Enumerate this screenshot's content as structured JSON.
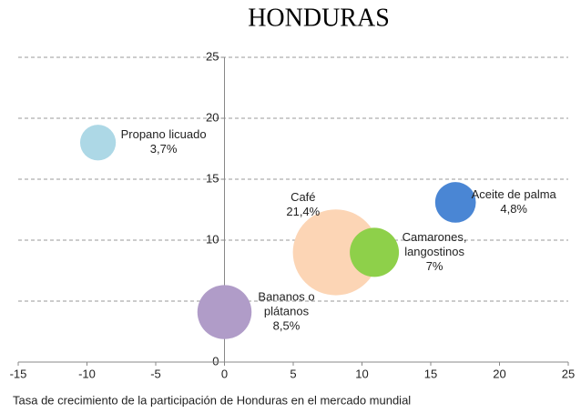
{
  "chart_data": {
    "type": "scatter",
    "title": "HONDURAS",
    "x_label": "Tasa de crecimiento de la participación de Honduras en el mercado mundial",
    "x": [
      -9.2,
      16.8,
      8.1,
      10.9,
      0
    ],
    "values": [
      18,
      13.1,
      9,
      9,
      4.1
    ],
    "sizes": [
      3.7,
      4.8,
      21.4,
      7,
      8.5
    ],
    "value_labels": [
      "3,7%",
      "4,8%",
      "21,4%",
      "7%",
      "8,5%"
    ],
    "labels": [
      [
        "Propano licuado"
      ],
      [
        "Aceite de palma"
      ],
      [
        "Café"
      ],
      [
        "Camarones,",
        "langostinos"
      ],
      [
        "Bananos o",
        "plátanos"
      ]
    ],
    "colors": [
      "#add8e6",
      "#4a86d4",
      "#fcd5b5",
      "#8ed04a",
      "#b09cc8"
    ],
    "xlim": [
      -15,
      25
    ],
    "xticks": [
      -15,
      -10,
      -5,
      0,
      5,
      10,
      15,
      20,
      25
    ],
    "ylim": [
      0,
      25
    ],
    "yticks": [
      0,
      5,
      10,
      15,
      20,
      25
    ],
    "grid": true
  }
}
